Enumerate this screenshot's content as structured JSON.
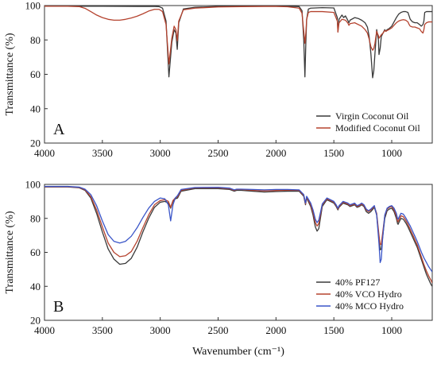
{
  "chart_data": [
    {
      "panel_label": "A",
      "type": "line",
      "xlabel": "",
      "ylabel": "Transmittance (%)",
      "xlim": [
        4000,
        650
      ],
      "ylim": [
        20,
        100
      ],
      "x_ticks": [
        4000,
        3500,
        3000,
        2500,
        2000,
        1500,
        1000
      ],
      "x_tick_labels": [
        "4000",
        "3500",
        "3000",
        "2500",
        "2000",
        "1500",
        "1000"
      ],
      "y_ticks": [
        20,
        40,
        60,
        80,
        100
      ],
      "y_tick_labels": [
        "20",
        "40",
        "60",
        "80",
        "100"
      ],
      "legend_position": "bottom-right",
      "series": [
        {
          "name": "Virgin Coconut Oil",
          "color": "#3a3a3a",
          "x": [
            4000,
            3700,
            3500,
            3200,
            3050,
            3010,
            2980,
            2950,
            2925,
            2900,
            2880,
            2865,
            2853,
            2840,
            2800,
            2700,
            2500,
            2300,
            2100,
            2000,
            1900,
            1800,
            1775,
            1760,
            1750,
            1742,
            1735,
            1720,
            1700,
            1600,
            1500,
            1470,
            1465,
            1455,
            1430,
            1415,
            1400,
            1380,
            1370,
            1360,
            1320,
            1290,
            1260,
            1230,
            1210,
            1195,
            1180,
            1165,
            1155,
            1145,
            1130,
            1115,
            1110,
            1100,
            1090,
            1075,
            1060,
            1050,
            1040,
            1025,
            1000,
            980,
            960,
            940,
            920,
            900,
            880,
            860,
            850,
            840,
            820,
            800,
            780,
            760,
            745,
            730,
            722,
            715,
            700,
            680,
            650
          ],
          "y": [
            99.6,
            99.6,
            99.6,
            99.5,
            99.5,
            99.4,
            98.5,
            91.0,
            58.5,
            78.5,
            86.0,
            84.0,
            74.5,
            90.0,
            98.0,
            99.0,
            99.5,
            99.6,
            99.6,
            99.6,
            99.6,
            99.4,
            97.0,
            80.0,
            58.5,
            78.5,
            92.0,
            98.0,
            98.5,
            98.8,
            98.6,
            93.0,
            85.0,
            92.0,
            94.5,
            93.0,
            94.0,
            91.5,
            90.0,
            91.5,
            93.0,
            92.5,
            91.5,
            90.0,
            87.5,
            82.0,
            72.0,
            58.0,
            62.0,
            72.0,
            86.0,
            80.0,
            71.5,
            75.0,
            82.0,
            84.0,
            86.0,
            85.0,
            86.0,
            86.5,
            88.0,
            90.5,
            93.0,
            95.0,
            96.0,
            96.5,
            96.5,
            96.0,
            94.0,
            92.0,
            90.5,
            90.0,
            90.0,
            89.0,
            88.0,
            89.0,
            91.0,
            96.0,
            96.5,
            96.5,
            96.5
          ]
        },
        {
          "name": "Modified Coconut Oil",
          "color": "#b5432f",
          "x": [
            4000,
            3800,
            3700,
            3650,
            3600,
            3550,
            3500,
            3450,
            3400,
            3350,
            3300,
            3250,
            3200,
            3150,
            3100,
            3050,
            3010,
            2980,
            2950,
            2925,
            2900,
            2880,
            2865,
            2853,
            2840,
            2800,
            2700,
            2500,
            2300,
            2100,
            2000,
            1900,
            1800,
            1775,
            1760,
            1750,
            1742,
            1735,
            1720,
            1700,
            1600,
            1500,
            1470,
            1465,
            1455,
            1430,
            1400,
            1380,
            1370,
            1360,
            1320,
            1260,
            1230,
            1210,
            1195,
            1180,
            1165,
            1155,
            1145,
            1130,
            1115,
            1110,
            1100,
            1090,
            1075,
            1060,
            1050,
            1040,
            1025,
            1000,
            980,
            960,
            940,
            920,
            900,
            880,
            860,
            850,
            840,
            820,
            800,
            780,
            760,
            745,
            730,
            722,
            715,
            700,
            680,
            650
          ],
          "y": [
            99.6,
            99.6,
            99.4,
            98.4,
            96.5,
            94.5,
            93.0,
            92.0,
            91.5,
            91.5,
            92.0,
            92.8,
            93.8,
            95.2,
            96.8,
            97.8,
            97.8,
            96.5,
            89.0,
            66.0,
            81.0,
            88.0,
            86.0,
            79.5,
            91.0,
            97.5,
            98.5,
            99.2,
            99.4,
            99.5,
            99.5,
            99.3,
            98.5,
            95.5,
            85.0,
            78.0,
            84.0,
            92.0,
            96.0,
            96.5,
            96.5,
            96.0,
            91.0,
            84.5,
            90.0,
            92.0,
            91.5,
            90.0,
            88.5,
            89.5,
            90.0,
            88.0,
            86.0,
            84.0,
            80.5,
            76.0,
            74.0,
            75.0,
            78.0,
            85.0,
            82.5,
            81.0,
            82.0,
            83.0,
            84.0,
            85.5,
            85.0,
            85.5,
            86.0,
            87.0,
            88.5,
            90.0,
            91.0,
            91.5,
            91.8,
            91.5,
            90.5,
            89.0,
            88.0,
            87.5,
            87.5,
            87.0,
            86.5,
            85.0,
            84.0,
            86.0,
            89.0,
            90.0,
            90.5,
            90.5
          ]
        }
      ]
    },
    {
      "panel_label": "B",
      "type": "line",
      "xlabel": "Wavenumber (cm⁻¹)",
      "ylabel": "Transmittance (%)",
      "xlim": [
        4000,
        650
      ],
      "ylim": [
        20,
        100
      ],
      "x_ticks": [
        4000,
        3500,
        3000,
        2500,
        2000,
        1500,
        1000
      ],
      "x_tick_labels": [
        "4000",
        "3500",
        "3000",
        "2500",
        "2000",
        "1500",
        "1000"
      ],
      "y_ticks": [
        20,
        40,
        60,
        80,
        100
      ],
      "y_tick_labels": [
        "20",
        "40",
        "60",
        "80",
        "100"
      ],
      "legend_position": "bottom-right",
      "series": [
        {
          "name": "40% PF127",
          "color": "#3a3a3a",
          "x": [
            4000,
            3900,
            3800,
            3700,
            3650,
            3600,
            3550,
            3500,
            3450,
            3400,
            3350,
            3300,
            3250,
            3200,
            3150,
            3100,
            3050,
            3000,
            2960,
            2930,
            2910,
            2890,
            2870,
            2850,
            2820,
            2700,
            2500,
            2400,
            2360,
            2340,
            2300,
            2200,
            2100,
            2000,
            1900,
            1800,
            1760,
            1745,
            1735,
            1700,
            1680,
            1660,
            1645,
            1630,
            1600,
            1560,
            1530,
            1500,
            1480,
            1465,
            1455,
            1420,
            1400,
            1380,
            1360,
            1340,
            1320,
            1300,
            1280,
            1260,
            1240,
            1220,
            1200,
            1180,
            1150,
            1130,
            1110,
            1100,
            1090,
            1080,
            1060,
            1040,
            1020,
            1000,
            980,
            960,
            950,
            945,
            935,
            920,
            900,
            880,
            860,
            840,
            820,
            800,
            780,
            760,
            740,
            720,
            700,
            680,
            660,
            650
          ],
          "y": [
            98.5,
            98.5,
            98.5,
            98.0,
            96.5,
            92.0,
            83.0,
            72.0,
            62.0,
            56.0,
            53.0,
            53.5,
            56.5,
            63.0,
            72.0,
            80.0,
            86.5,
            89.5,
            90.0,
            89.0,
            86.0,
            90.0,
            91.5,
            92.0,
            96.0,
            97.5,
            97.5,
            97.0,
            96.0,
            96.5,
            96.5,
            96.0,
            95.5,
            95.8,
            96.0,
            96.0,
            93.0,
            88.0,
            92.0,
            87.0,
            82.0,
            75.0,
            72.5,
            74.0,
            87.0,
            91.0,
            90.0,
            89.0,
            87.0,
            85.0,
            86.5,
            89.0,
            88.5,
            88.0,
            87.0,
            87.5,
            88.0,
            86.5,
            87.0,
            88.0,
            87.0,
            84.0,
            83.0,
            84.0,
            86.5,
            82.0,
            68.0,
            61.5,
            62.0,
            68.0,
            80.0,
            84.5,
            85.5,
            86.0,
            84.0,
            80.0,
            77.0,
            76.5,
            78.0,
            80.0,
            79.5,
            77.5,
            75.0,
            72.0,
            69.0,
            66.0,
            63.0,
            59.0,
            55.0,
            51.0,
            47.0,
            44.0,
            41.0,
            40.0
          ]
        },
        {
          "name": "40% VCO Hydro",
          "color": "#b5432f",
          "x": [
            4000,
            3900,
            3800,
            3700,
            3650,
            3600,
            3550,
            3500,
            3450,
            3400,
            3350,
            3300,
            3250,
            3200,
            3150,
            3100,
            3050,
            3000,
            2960,
            2930,
            2910,
            2890,
            2870,
            2850,
            2820,
            2700,
            2500,
            2400,
            2360,
            2340,
            2300,
            2200,
            2100,
            2000,
            1900,
            1800,
            1760,
            1745,
            1735,
            1700,
            1680,
            1660,
            1645,
            1630,
            1600,
            1560,
            1530,
            1500,
            1480,
            1465,
            1455,
            1420,
            1400,
            1380,
            1360,
            1340,
            1320,
            1300,
            1280,
            1260,
            1240,
            1220,
            1200,
            1180,
            1150,
            1130,
            1110,
            1100,
            1090,
            1080,
            1060,
            1040,
            1020,
            1000,
            980,
            960,
            950,
            945,
            935,
            920,
            900,
            880,
            860,
            840,
            820,
            800,
            780,
            760,
            740,
            720,
            700,
            680,
            660,
            650
          ],
          "y": [
            98.6,
            98.6,
            98.6,
            98.2,
            96.8,
            92.8,
            85.0,
            75.0,
            65.5,
            60.0,
            57.5,
            58.0,
            60.5,
            66.5,
            74.5,
            82.0,
            88.0,
            90.5,
            91.0,
            90.0,
            86.5,
            90.5,
            92.0,
            92.8,
            96.5,
            98.0,
            98.0,
            97.5,
            96.5,
            97.0,
            97.0,
            96.5,
            96.2,
            96.4,
            96.6,
            96.5,
            93.5,
            88.5,
            92.5,
            88.0,
            83.5,
            77.5,
            75.5,
            77.0,
            88.0,
            91.5,
            90.5,
            89.5,
            87.5,
            85.5,
            87.0,
            89.5,
            89.0,
            88.5,
            87.5,
            88.0,
            88.5,
            87.0,
            87.5,
            88.5,
            87.5,
            85.0,
            84.0,
            85.0,
            87.0,
            83.0,
            70.0,
            64.5,
            65.0,
            70.5,
            81.5,
            85.5,
            86.5,
            87.0,
            85.0,
            81.5,
            78.5,
            78.0,
            79.5,
            81.5,
            81.0,
            79.0,
            76.5,
            73.5,
            70.5,
            67.5,
            64.5,
            60.5,
            56.5,
            52.5,
            49.0,
            46.0,
            43.5,
            42.0
          ]
        },
        {
          "name": "40% MCO Hydro",
          "color": "#3a55c8",
          "x": [
            4000,
            3900,
            3800,
            3700,
            3650,
            3600,
            3550,
            3500,
            3450,
            3400,
            3350,
            3300,
            3250,
            3200,
            3150,
            3100,
            3050,
            3000,
            2960,
            2930,
            2910,
            2890,
            2870,
            2850,
            2820,
            2700,
            2500,
            2400,
            2360,
            2340,
            2300,
            2200,
            2100,
            2000,
            1900,
            1800,
            1760,
            1745,
            1735,
            1700,
            1680,
            1660,
            1645,
            1630,
            1600,
            1560,
            1530,
            1500,
            1480,
            1465,
            1455,
            1420,
            1400,
            1380,
            1360,
            1340,
            1320,
            1300,
            1280,
            1260,
            1240,
            1220,
            1200,
            1180,
            1150,
            1130,
            1110,
            1100,
            1090,
            1080,
            1060,
            1040,
            1020,
            1000,
            980,
            960,
            950,
            945,
            935,
            920,
            900,
            880,
            860,
            840,
            820,
            800,
            780,
            760,
            740,
            720,
            700,
            680,
            660,
            650
          ],
          "y": [
            98.8,
            98.8,
            98.8,
            98.4,
            97.2,
            94.0,
            87.5,
            78.5,
            70.5,
            66.5,
            65.5,
            66.5,
            69.5,
            74.5,
            80.5,
            86.0,
            90.0,
            92.0,
            91.5,
            88.0,
            78.5,
            88.0,
            92.0,
            93.5,
            97.0,
            98.2,
            98.3,
            97.8,
            96.8,
            97.2,
            97.2,
            97.0,
            96.8,
            97.0,
            97.0,
            96.8,
            94.0,
            89.0,
            93.0,
            89.0,
            85.0,
            79.5,
            77.5,
            79.0,
            88.5,
            92.0,
            91.0,
            90.0,
            88.0,
            86.0,
            87.5,
            90.0,
            89.5,
            89.0,
            88.0,
            88.5,
            89.0,
            87.5,
            88.0,
            89.0,
            88.0,
            85.5,
            84.5,
            85.5,
            87.5,
            82.0,
            65.0,
            54.0,
            56.0,
            67.0,
            82.0,
            86.0,
            87.0,
            87.5,
            86.0,
            83.0,
            80.0,
            79.5,
            81.0,
            83.0,
            82.5,
            80.5,
            78.0,
            75.5,
            72.5,
            69.5,
            66.5,
            63.0,
            59.5,
            56.5,
            54.0,
            51.5,
            49.5,
            48.5
          ]
        }
      ]
    }
  ]
}
